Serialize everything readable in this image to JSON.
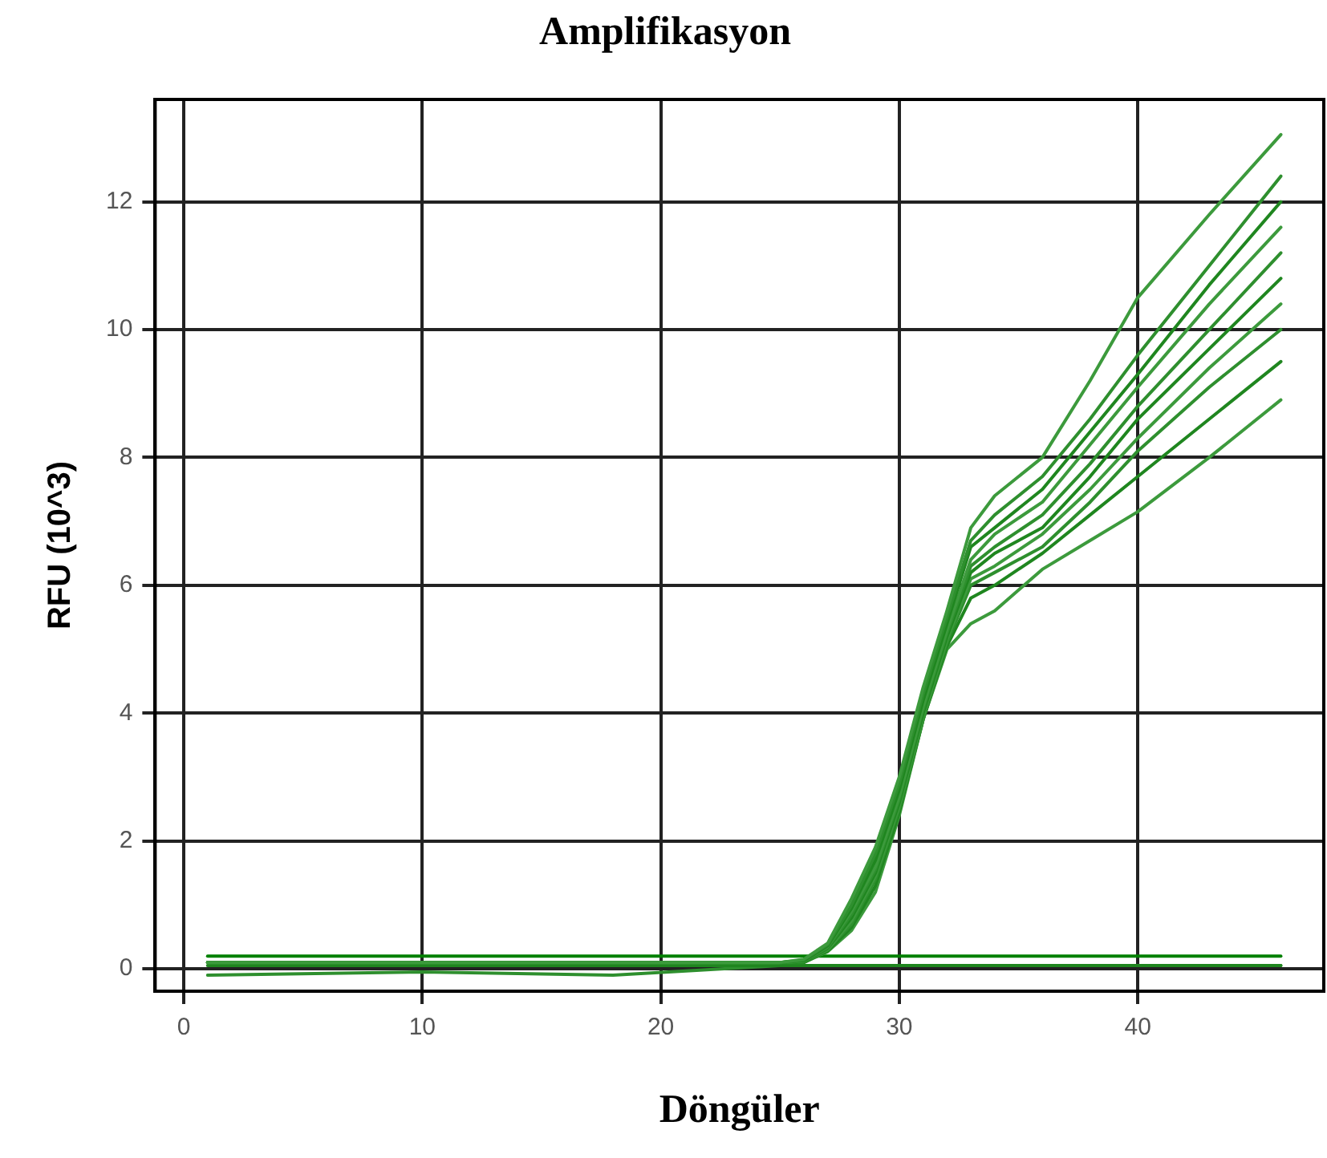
{
  "chart_data": {
    "type": "line",
    "title": "Amplifikasyon",
    "xlabel": "Döngüler",
    "ylabel": "RFU (10^3)",
    "xlim": [
      -1.2,
      47.8
    ],
    "ylim": [
      -0.35,
      13.6
    ],
    "xticks": [
      0,
      10,
      20,
      30,
      40
    ],
    "yticks": [
      0,
      2,
      4,
      6,
      8,
      10,
      12
    ],
    "grid": true,
    "legend": false,
    "marker": "none",
    "line_style": "solid",
    "series": [
      {
        "color": "#3c9a3c",
        "x": [
          1,
          10,
          20,
          25,
          26,
          27,
          28,
          29,
          30,
          31,
          32,
          33,
          34,
          36,
          38,
          40,
          43,
          46
        ],
        "values": [
          0.1,
          0.1,
          0.1,
          0.1,
          0.15,
          0.4,
          1.1,
          1.9,
          3.0,
          4.4,
          5.6,
          6.9,
          7.4,
          8.0,
          9.2,
          10.5,
          11.8,
          13.05
        ]
      },
      {
        "color": "#2e8f2e",
        "x": [
          1,
          10,
          20,
          25,
          26,
          27,
          28,
          29,
          30,
          31,
          32,
          33,
          34,
          36,
          38,
          40,
          43,
          46
        ],
        "values": [
          0.1,
          0.1,
          0.1,
          0.1,
          0.14,
          0.38,
          1.0,
          1.8,
          2.9,
          4.3,
          5.5,
          6.7,
          7.1,
          7.7,
          8.6,
          9.6,
          11.0,
          12.4
        ]
      },
      {
        "color": "#1f861f",
        "x": [
          1,
          10,
          20,
          25,
          26,
          27,
          28,
          29,
          30,
          31,
          32,
          33,
          34,
          36,
          38,
          40,
          43,
          46
        ],
        "values": [
          0.1,
          0.1,
          0.1,
          0.1,
          0.13,
          0.36,
          0.95,
          1.7,
          2.8,
          4.2,
          5.4,
          6.6,
          6.9,
          7.5,
          8.4,
          9.3,
          10.7,
          12.0
        ]
      },
      {
        "color": "#3c9a3c",
        "x": [
          1,
          10,
          20,
          25,
          26,
          27,
          28,
          29,
          30,
          31,
          32,
          33,
          34,
          36,
          38,
          40,
          43,
          46
        ],
        "values": [
          0.1,
          0.1,
          0.1,
          0.1,
          0.12,
          0.35,
          0.9,
          1.6,
          2.7,
          4.1,
          5.3,
          6.4,
          6.8,
          7.3,
          8.2,
          9.1,
          10.4,
          11.6
        ]
      },
      {
        "color": "#2e8f2e",
        "x": [
          1,
          10,
          20,
          25,
          26,
          27,
          28,
          29,
          30,
          31,
          32,
          33,
          34,
          36,
          38,
          40,
          43,
          46
        ],
        "values": [
          0.1,
          0.1,
          0.1,
          0.1,
          0.12,
          0.33,
          0.85,
          1.55,
          2.65,
          4.05,
          5.25,
          6.3,
          6.6,
          7.1,
          7.9,
          8.8,
          10.0,
          11.2
        ]
      },
      {
        "color": "#1f861f",
        "x": [
          1,
          10,
          20,
          25,
          26,
          27,
          28,
          29,
          30,
          31,
          32,
          33,
          34,
          36,
          38,
          40,
          43,
          46
        ],
        "values": [
          0.1,
          0.1,
          0.1,
          0.1,
          0.11,
          0.32,
          0.8,
          1.5,
          2.6,
          4.0,
          5.2,
          6.2,
          6.5,
          6.9,
          7.7,
          8.6,
          9.7,
          10.8
        ]
      },
      {
        "color": "#3c9a3c",
        "x": [
          1,
          10,
          20,
          25,
          26,
          27,
          28,
          29,
          30,
          31,
          32,
          33,
          34,
          36,
          38,
          40,
          43,
          46
        ],
        "values": [
          0.1,
          0.1,
          0.1,
          0.1,
          0.11,
          0.3,
          0.75,
          1.45,
          2.55,
          3.95,
          5.15,
          6.1,
          6.3,
          6.8,
          7.5,
          8.3,
          9.4,
          10.4
        ]
      },
      {
        "color": "#2e8f2e",
        "x": [
          1,
          10,
          20,
          25,
          26,
          27,
          28,
          29,
          30,
          31,
          32,
          33,
          34,
          36,
          38,
          40,
          43,
          46
        ],
        "values": [
          0.1,
          0.1,
          0.1,
          0.1,
          0.11,
          0.3,
          0.7,
          1.4,
          2.5,
          3.9,
          5.1,
          6.0,
          6.2,
          6.6,
          7.3,
          8.1,
          9.1,
          10.0
        ]
      },
      {
        "color": "#1f861f",
        "x": [
          1,
          10,
          20,
          25,
          26,
          27,
          28,
          29,
          30,
          31,
          32,
          33,
          34,
          36,
          38,
          40,
          43,
          46
        ],
        "values": [
          0.1,
          0.1,
          0.1,
          0.1,
          0.1,
          0.28,
          0.65,
          1.3,
          2.45,
          3.9,
          5.05,
          5.8,
          6.0,
          6.5,
          7.1,
          7.7,
          8.6,
          9.5
        ]
      },
      {
        "color": "#3c9a3c",
        "x": [
          1,
          10,
          20,
          25,
          26,
          27,
          28,
          29,
          30,
          31,
          32,
          33,
          34,
          36,
          38,
          40,
          43,
          46
        ],
        "values": [
          0.1,
          0.1,
          0.1,
          0.1,
          0.1,
          0.27,
          0.6,
          1.2,
          2.4,
          3.9,
          5.0,
          5.4,
          5.6,
          6.25,
          6.7,
          7.15,
          8.0,
          8.9
        ]
      },
      {
        "color": "#008000",
        "x": [
          1,
          46
        ],
        "values": [
          0.2,
          0.2
        ]
      },
      {
        "color": "#1f861f",
        "x": [
          1,
          46
        ],
        "values": [
          0.05,
          0.05
        ]
      },
      {
        "color": "#2e8f2e",
        "x": [
          1,
          10,
          18,
          25,
          46
        ],
        "values": [
          -0.1,
          -0.05,
          -0.1,
          0.05,
          0.05
        ]
      }
    ]
  }
}
